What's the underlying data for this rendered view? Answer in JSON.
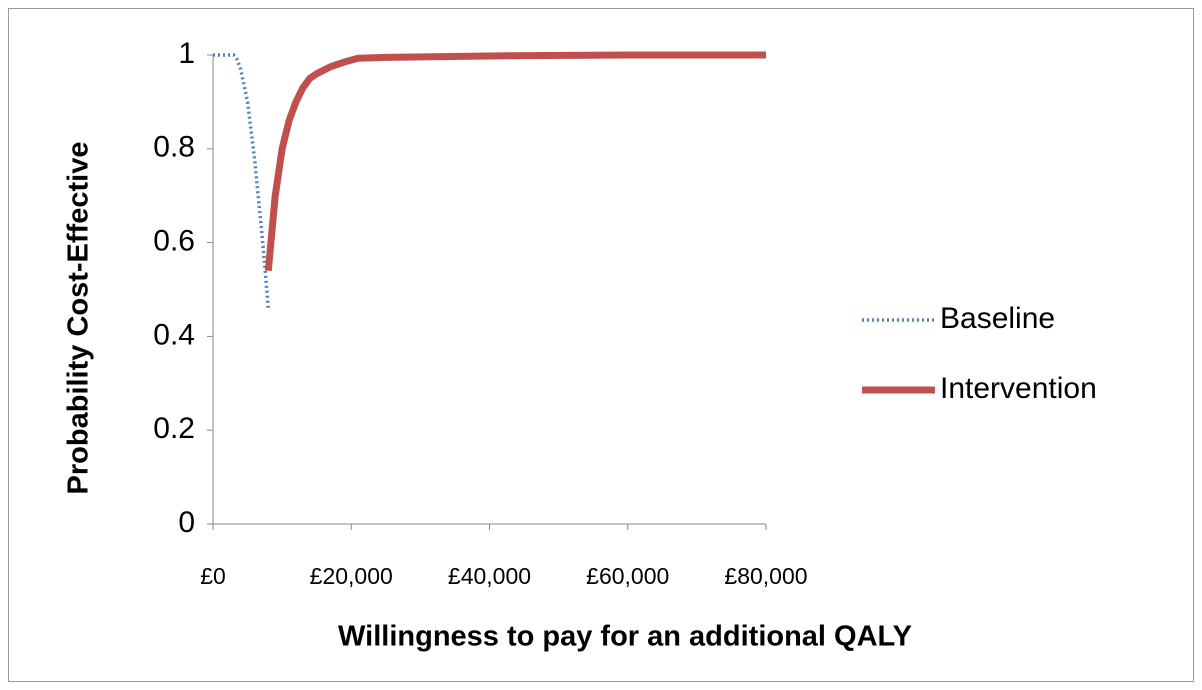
{
  "chart_data": {
    "type": "line",
    "xlabel": "Willingness to pay for an additional QALY",
    "ylabel": "Probability  Cost-Effective",
    "xlim": [
      0,
      80000
    ],
    "ylim": [
      0,
      1
    ],
    "xticks": [
      {
        "value": 0,
        "label": "£0"
      },
      {
        "value": 20000,
        "label": "£20,000"
      },
      {
        "value": 40000,
        "label": "£40,000"
      },
      {
        "value": 60000,
        "label": "£60,000"
      },
      {
        "value": 80000,
        "label": "£80,000"
      }
    ],
    "yticks": [
      0,
      0.2,
      0.4,
      0.6,
      0.8,
      1
    ],
    "legend": "right",
    "series": [
      {
        "name": "Baseline",
        "color": "#4f81bd",
        "style": "dotted",
        "x": [
          0,
          1000,
          2000,
          3000,
          3500,
          4000,
          5000,
          6000,
          7000,
          7500,
          8000
        ],
        "values": [
          1,
          1,
          1,
          1,
          0.99,
          0.97,
          0.9,
          0.78,
          0.63,
          0.55,
          0.46
        ]
      },
      {
        "name": "Intervention",
        "color": "#c0504d",
        "style": "solid",
        "x": [
          8000,
          9000,
          10000,
          11000,
          12000,
          13000,
          14000,
          15000,
          17000,
          19000,
          21000,
          25000,
          40000,
          60000,
          80000
        ],
        "values": [
          0.54,
          0.7,
          0.8,
          0.86,
          0.9,
          0.93,
          0.95,
          0.96,
          0.975,
          0.985,
          0.993,
          0.995,
          0.998,
          1,
          1
        ]
      }
    ]
  }
}
